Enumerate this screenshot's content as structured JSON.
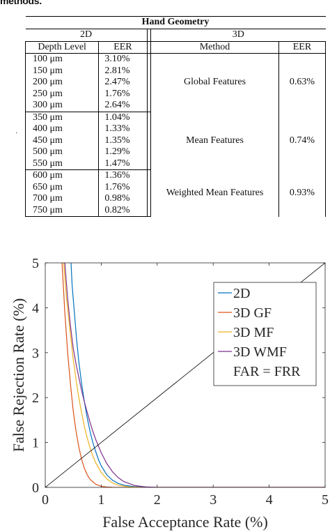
{
  "caption": "methods.",
  "table": {
    "title": "Hand Geometry",
    "group_2d": "2D",
    "group_3d": "3D",
    "col_depth": "Depth Level",
    "col_eer_2d": "EER",
    "col_method": "Method",
    "col_eer_3d": "EER",
    "rows": [
      {
        "depth": "100 μm",
        "eer": "3.10%"
      },
      {
        "depth": "150 μm",
        "eer": "2.81%"
      },
      {
        "depth": "200 μm",
        "eer": "2.47%"
      },
      {
        "depth": "250 μm",
        "eer": "1.76%"
      },
      {
        "depth": "300 μm",
        "eer": "2.64%"
      },
      {
        "depth": "350 μm",
        "eer": "1.04%"
      },
      {
        "depth": "400 μm",
        "eer": "1.33%"
      },
      {
        "depth": "450 μm",
        "eer": "1.35%"
      },
      {
        "depth": "500 μm",
        "eer": "1.29%"
      },
      {
        "depth": "550 μm",
        "eer": "1.47%"
      },
      {
        "depth": "600 μm",
        "eer": "1.36%"
      },
      {
        "depth": "650 μm",
        "eer": "1.76%"
      },
      {
        "depth": "700 μm",
        "eer": "0.98%"
      },
      {
        "depth": "750 μm",
        "eer": "0.82%"
      }
    ],
    "methods": [
      {
        "name": "Global Features",
        "eer": "0.63%"
      },
      {
        "name": "Mean Features",
        "eer": "0.74%"
      },
      {
        "name": "Weighted Mean Features",
        "eer": "0.93%"
      }
    ]
  },
  "chart_data": {
    "type": "line",
    "title": "",
    "xlabel": "False Acceptance Rate (%)",
    "ylabel": "False Rejection Rate (%)",
    "xlim": [
      0,
      5
    ],
    "ylim": [
      0,
      5
    ],
    "xticks": [
      "0",
      "1",
      "2",
      "3",
      "4",
      "5"
    ],
    "yticks": [
      "0",
      "1",
      "2",
      "3",
      "4",
      "5"
    ],
    "grid": false,
    "legend_position": "top-right",
    "series": [
      {
        "name": "2D",
        "color": "#0072BD",
        "x": [
          0.46,
          0.48,
          0.52,
          0.56,
          0.6,
          0.65,
          0.7,
          0.75,
          0.8,
          0.85,
          0.9,
          0.95,
          1.0,
          1.1,
          1.2,
          1.3,
          1.4,
          1.6,
          1.8,
          2.0,
          3.0,
          5.0
        ],
        "y": [
          5.0,
          4.5,
          3.9,
          3.3,
          2.8,
          2.3,
          1.9,
          1.55,
          1.25,
          1.0,
          0.8,
          0.62,
          0.48,
          0.28,
          0.16,
          0.09,
          0.05,
          0.015,
          0.004,
          0,
          0,
          0
        ]
      },
      {
        "name": "3D GF",
        "color": "#D95319",
        "x": [
          0.3,
          0.35,
          0.4,
          0.45,
          0.5,
          0.55,
          0.6,
          0.65,
          0.7,
          0.75,
          0.8,
          0.9,
          1.0,
          1.1,
          1.2,
          1.4,
          1.6,
          2.0,
          3.0,
          5.0
        ],
        "y": [
          5.0,
          3.9,
          3.0,
          2.3,
          1.7,
          1.25,
          0.9,
          0.62,
          0.42,
          0.28,
          0.18,
          0.07,
          0.025,
          0.008,
          0.002,
          0,
          0,
          0,
          0,
          0
        ]
      },
      {
        "name": "3D MF",
        "color": "#EDB120",
        "x": [
          0.33,
          0.38,
          0.45,
          0.5,
          0.55,
          0.6,
          0.65,
          0.7,
          0.75,
          0.8,
          0.85,
          0.9,
          1.0,
          1.1,
          1.2,
          1.3,
          1.5,
          1.7,
          2.0,
          3.0,
          5.0
        ],
        "y": [
          5.0,
          4.2,
          3.4,
          2.85,
          2.4,
          2.0,
          1.65,
          1.35,
          1.1,
          0.88,
          0.7,
          0.55,
          0.33,
          0.19,
          0.1,
          0.05,
          0.012,
          0.003,
          0,
          0,
          0
        ]
      },
      {
        "name": "3D WMF",
        "color": "#7E2F8E",
        "x": [
          0.35,
          0.4,
          0.45,
          0.5,
          0.55,
          0.6,
          0.65,
          0.7,
          0.75,
          0.8,
          0.85,
          0.9,
          1.0,
          1.1,
          1.2,
          1.3,
          1.4,
          1.6,
          1.8,
          2.0,
          3.0,
          5.0
        ],
        "y": [
          5.0,
          4.2,
          3.6,
          3.1,
          2.75,
          2.45,
          2.15,
          1.9,
          1.67,
          1.45,
          1.25,
          1.07,
          0.77,
          0.53,
          0.35,
          0.22,
          0.13,
          0.04,
          0.01,
          0,
          0,
          0
        ]
      },
      {
        "name": "FAR = FRR",
        "color": "#000000",
        "x": [
          0,
          5
        ],
        "y": [
          0,
          5
        ]
      }
    ]
  }
}
